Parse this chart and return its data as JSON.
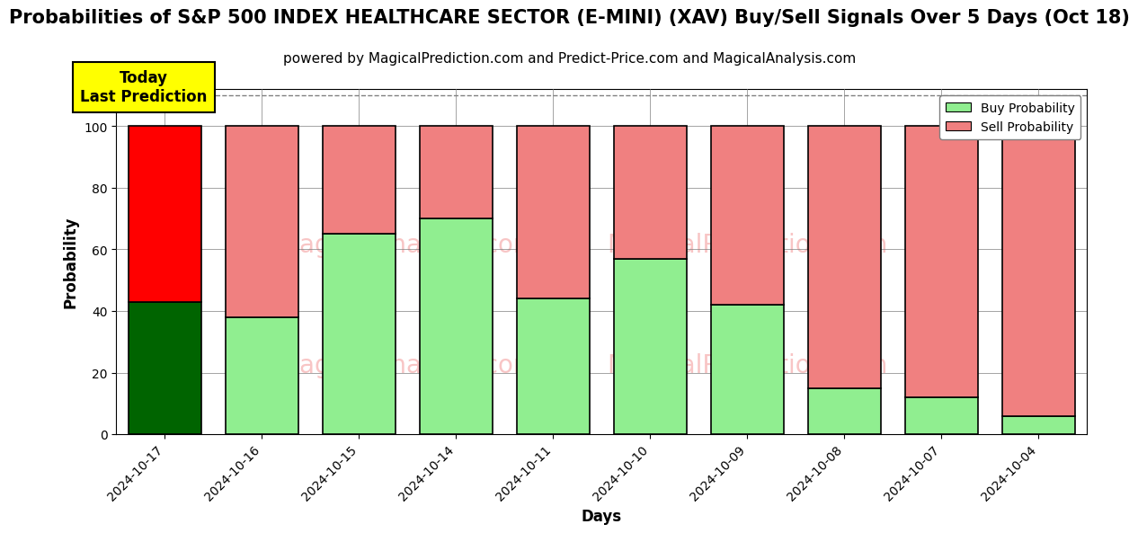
{
  "title": "Probabilities of S&P 500 INDEX HEALTHCARE SECTOR (E-MINI) (XAV) Buy/Sell Signals Over 5 Days (Oct 18)",
  "subtitle": "powered by MagicalPrediction.com and Predict-Price.com and MagicalAnalysis.com",
  "xlabel": "Days",
  "ylabel": "Probability",
  "categories": [
    "2024-10-17",
    "2024-10-16",
    "2024-10-15",
    "2024-10-14",
    "2024-10-11",
    "2024-10-10",
    "2024-10-09",
    "2024-10-08",
    "2024-10-07",
    "2024-10-04"
  ],
  "buy_values": [
    43,
    38,
    65,
    70,
    44,
    57,
    42,
    15,
    12,
    6
  ],
  "sell_values": [
    57,
    62,
    35,
    30,
    56,
    43,
    58,
    85,
    88,
    94
  ],
  "today_bar_index": 0,
  "buy_color_today": "#006400",
  "sell_color_today": "#ff0000",
  "buy_color_rest": "#90EE90",
  "sell_color_rest": "#F08080",
  "bar_edge_color": "#000000",
  "ylim": [
    0,
    112
  ],
  "yticks": [
    0,
    20,
    40,
    60,
    80,
    100
  ],
  "dashed_line_y": 110,
  "annotation_text": "Today\nLast Prediction",
  "annotation_bg_color": "#FFFF00",
  "legend_buy_label": "Buy Probability",
  "legend_sell_label": "Sell Probability",
  "title_fontsize": 15,
  "subtitle_fontsize": 11,
  "axis_label_fontsize": 12,
  "tick_fontsize": 10,
  "watermark1": "MagicalAnalysis.com",
  "watermark2": "MagicalPrediction.com",
  "watermark_color": "#F08080",
  "watermark_alpha": 0.45,
  "watermark_fontsize": 20
}
